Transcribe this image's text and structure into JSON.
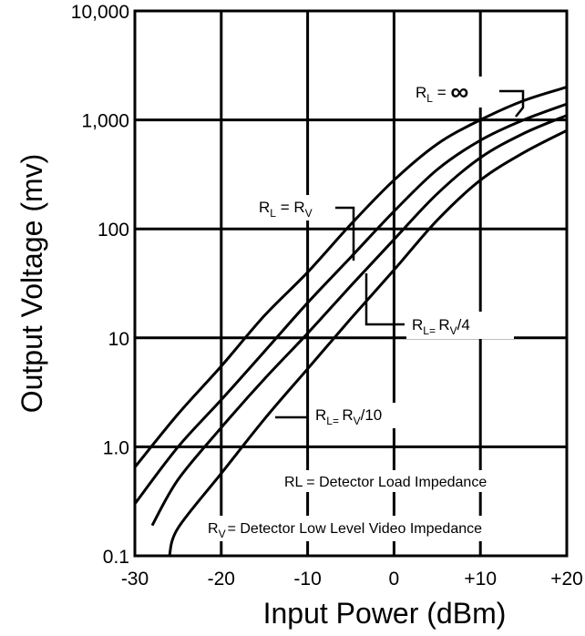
{
  "chart_data": {
    "type": "line",
    "xlabel": "Input Power (dBm)",
    "ylabel": "Output Voltage (mv)",
    "xlim": [
      -30,
      20
    ],
    "ylim": [
      0.1,
      10000
    ],
    "y_scale": "log",
    "grid": true,
    "x_ticks": [
      -30,
      -20,
      -10,
      0,
      10,
      20
    ],
    "x_tick_labels": [
      "-30",
      "-20",
      "-10",
      "0",
      "+10",
      "+20"
    ],
    "y_ticks": [
      0.1,
      1,
      10,
      100,
      1000,
      10000
    ],
    "y_tick_labels": [
      "0.1",
      "1.0",
      "10",
      "100",
      "1,000",
      "10,000"
    ],
    "series": [
      {
        "name": "RL = ∞",
        "x": [
          -30,
          -25,
          -20,
          -15,
          -10,
          -5,
          0,
          5,
          10,
          15,
          20
        ],
        "y": [
          0.65,
          2.0,
          5.5,
          16,
          40,
          110,
          280,
          600,
          1000,
          1500,
          2000
        ]
      },
      {
        "name": "RL = RV",
        "x": [
          -30,
          -25,
          -20,
          -15,
          -10,
          -5,
          0,
          5,
          10,
          15,
          20
        ],
        "y": [
          0.3,
          1.0,
          2.7,
          7.5,
          21,
          55,
          145,
          350,
          650,
          1000,
          1400
        ]
      },
      {
        "name": "RL = RV/4",
        "x": [
          -28,
          -25,
          -20,
          -15,
          -10,
          -5,
          0,
          5,
          10,
          15,
          20
        ],
        "y": [
          0.19,
          0.5,
          1.5,
          4.2,
          11,
          30,
          80,
          210,
          450,
          750,
          1100
        ]
      },
      {
        "name": "RL = RV/10",
        "x": [
          -26,
          -25,
          -20,
          -15,
          -10,
          -5,
          0,
          5,
          10,
          15,
          20
        ],
        "y": [
          0.1,
          0.18,
          0.57,
          1.8,
          5.2,
          15,
          42,
          120,
          280,
          500,
          800
        ]
      }
    ],
    "annotations": {
      "inf": {
        "R": "R",
        "L": "L",
        "eq": " = ",
        "sym": "∞"
      },
      "rv": {
        "R": "R",
        "L": "L",
        "eq": " = R",
        "V": "V"
      },
      "rv4": {
        "R": "R",
        "L": "L",
        "eq": "= ",
        "R2": "R",
        "V": "V",
        "tail": "/4"
      },
      "rv10": {
        "R": "R",
        "L": "L",
        "eq": "= ",
        "R2": "R",
        "V": "V",
        "tail": "/10"
      }
    },
    "notes": {
      "rl": "RL = Detector Load Impedance",
      "rv_R": "R",
      "rv_V": "V",
      "rv_text": "= Detector Low Level Video Impedance"
    }
  }
}
